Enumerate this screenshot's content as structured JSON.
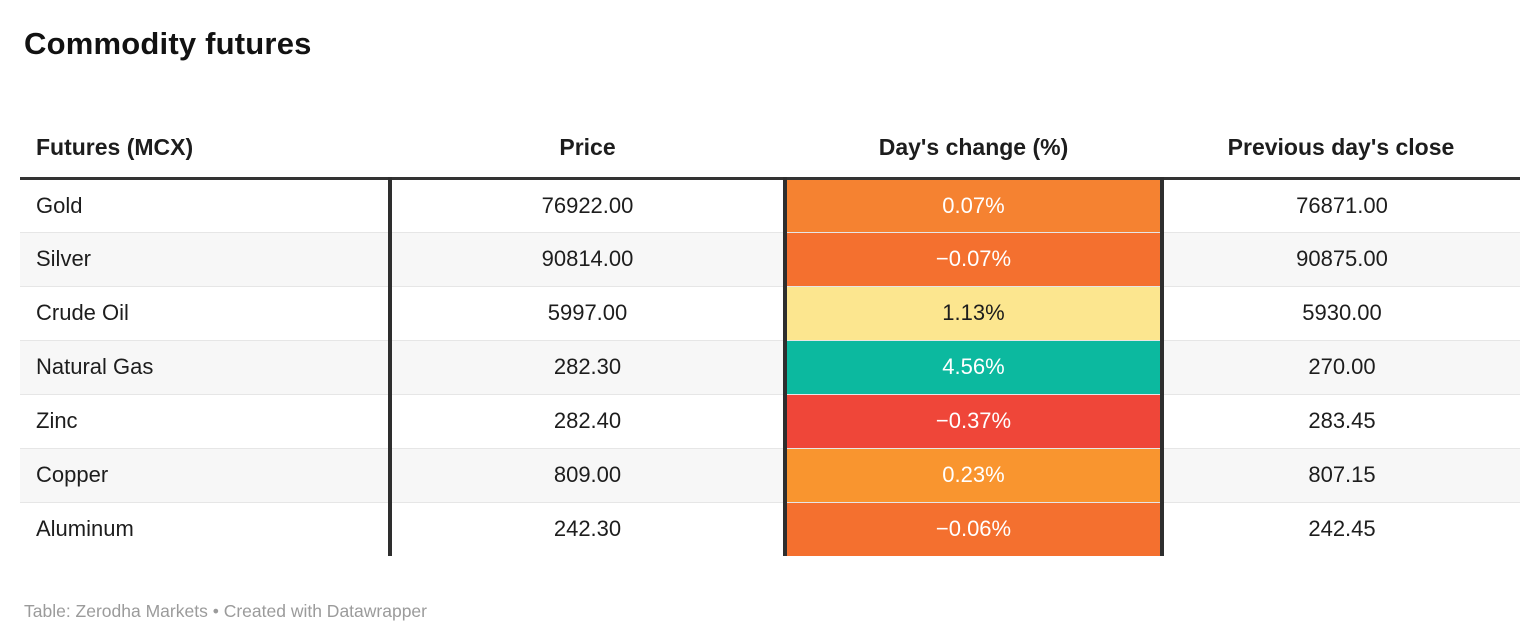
{
  "title": "Commodity futures",
  "table": {
    "columns": [
      {
        "label": "Futures (MCX)"
      },
      {
        "label": "Price"
      },
      {
        "label": "Day's change (%)"
      },
      {
        "label": "Previous day's close"
      }
    ],
    "rows": [
      {
        "name": "Gold",
        "price": "76922.00",
        "change": "0.07%",
        "change_bg": "#f58231",
        "change_fg": "#ffffff",
        "prev_close": "76871.00"
      },
      {
        "name": "Silver",
        "price": "90814.00",
        "change": "−0.07%",
        "change_bg": "#f4702f",
        "change_fg": "#ffffff",
        "prev_close": "90875.00"
      },
      {
        "name": "Crude Oil",
        "price": "5997.00",
        "change": "1.13%",
        "change_bg": "#fce68f",
        "change_fg": "#1d1d1d",
        "prev_close": "5930.00"
      },
      {
        "name": "Natural Gas",
        "price": "282.30",
        "change": "4.56%",
        "change_bg": "#0cb99f",
        "change_fg": "#ffffff",
        "prev_close": "270.00"
      },
      {
        "name": "Zinc",
        "price": "282.40",
        "change": "−0.37%",
        "change_bg": "#ef4639",
        "change_fg": "#ffffff",
        "prev_close": "283.45"
      },
      {
        "name": "Copper",
        "price": "809.00",
        "change": "0.23%",
        "change_bg": "#f9952f",
        "change_fg": "#ffffff",
        "prev_close": "807.15"
      },
      {
        "name": "Aluminum",
        "price": "242.30",
        "change": "−0.06%",
        "change_bg": "#f4702f",
        "change_fg": "#ffffff",
        "prev_close": "242.45"
      }
    ]
  },
  "footer": {
    "source_label": "Table: Zerodha Markets",
    "separator": " • ",
    "attribution": "Created with Datawrapper"
  },
  "colors": {
    "header_border": "#333333",
    "column_divider": "#2e2e2e",
    "row_stripe": "#f7f7f7",
    "row_separator": "#e6e6e6",
    "footer_text": "#9b9b9b"
  },
  "chart_data": {
    "type": "table",
    "title": "Commodity futures",
    "columns": [
      "Futures (MCX)",
      "Price",
      "Day's change (%)",
      "Previous day's close"
    ],
    "rows": [
      [
        "Gold",
        76922.0,
        0.07,
        76871.0
      ],
      [
        "Silver",
        90814.0,
        -0.07,
        90875.0
      ],
      [
        "Crude Oil",
        5997.0,
        1.13,
        5930.0
      ],
      [
        "Natural Gas",
        282.3,
        4.56,
        270.0
      ],
      [
        "Zinc",
        282.4,
        -0.37,
        283.45
      ],
      [
        "Copper",
        809.0,
        0.23,
        807.15
      ],
      [
        "Aluminum",
        242.3,
        -0.06,
        242.45
      ]
    ],
    "notes": "Day's change (%) column cells are heatmap-colored: red for most negative, orange/yellow around zero, teal-green for most positive",
    "source": "Table: Zerodha Markets • Created with Datawrapper"
  }
}
